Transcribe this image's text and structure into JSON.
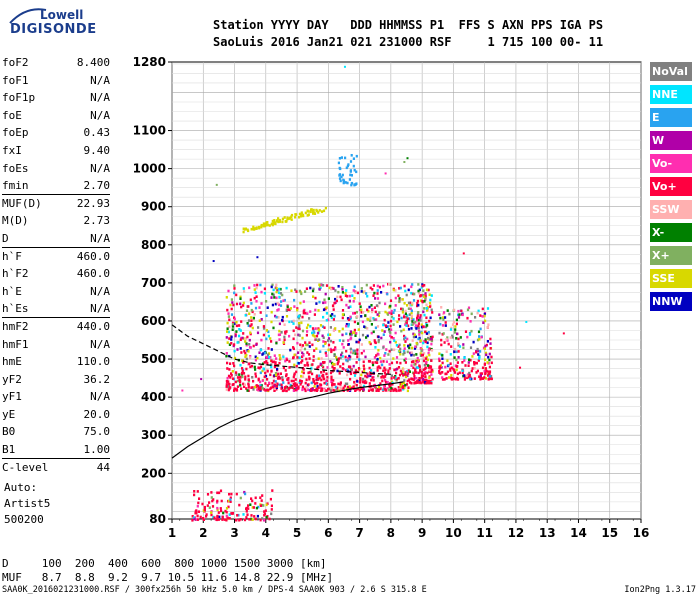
{
  "logo": {
    "top": "Lowell",
    "bottom": "DIGISONDE"
  },
  "header": {
    "line1": "Station YYYY DAY   DDD HHMMSS P1  FFS S AXN PPS IGA PS",
    "line2": "SaoLuis 2016 Jan21 021 231000 RSF     1 715 100 00- 11"
  },
  "params": [
    {
      "label": "foF2",
      "value": "8.400"
    },
    {
      "label": "foF1",
      "value": "N/A"
    },
    {
      "label": "foF1p",
      "value": "N/A"
    },
    {
      "label": "foE",
      "value": "N/A"
    },
    {
      "label": "foEp",
      "value": "0.43"
    },
    {
      "label": "fxI",
      "value": "9.40"
    },
    {
      "label": "foEs",
      "value": "N/A"
    },
    {
      "label": "fmin",
      "value": "2.70"
    },
    {
      "label": "MUF(D)",
      "value": "22.93"
    },
    {
      "label": "M(D)",
      "value": "2.73"
    },
    {
      "label": "D",
      "value": "N/A"
    },
    {
      "label": "h`F",
      "value": "460.0"
    },
    {
      "label": "h`F2",
      "value": "460.0"
    },
    {
      "label": "h`E",
      "value": "N/A"
    },
    {
      "label": "h`Es",
      "value": "N/A"
    },
    {
      "label": "hmF2",
      "value": "440.0"
    },
    {
      "label": "hmF1",
      "value": "N/A"
    },
    {
      "label": "hmE",
      "value": "110.0"
    },
    {
      "label": "yF2",
      "value": "36.2"
    },
    {
      "label": "yF1",
      "value": "N/A"
    },
    {
      "label": "yE",
      "value": "20.0"
    },
    {
      "label": "B0",
      "value": "75.0"
    },
    {
      "label": "B1",
      "value": "1.00"
    },
    {
      "label": "C-level",
      "value": "44"
    }
  ],
  "auto": {
    "line1": "Auto:",
    "line2": "Artist5",
    "line3": "500200"
  },
  "legend": [
    {
      "label": "NoVal",
      "color": "#808080"
    },
    {
      "label": "NNE",
      "color": "#00e5ff"
    },
    {
      "label": "E",
      "color": "#29a3f0"
    },
    {
      "label": "W",
      "color": "#b000a8"
    },
    {
      "label": "Vo-",
      "color": "#ff2eb0"
    },
    {
      "label": "Vo+",
      "color": "#ff0040"
    },
    {
      "label": "SSW",
      "color": "#ffb0b0"
    },
    {
      "label": "X-",
      "color": "#008000"
    },
    {
      "label": "X+",
      "color": "#80b060"
    },
    {
      "label": "SSE",
      "color": "#d8d800"
    },
    {
      "label": "NNW",
      "color": "#0000c0"
    }
  ],
  "chart_data": {
    "type": "scatter",
    "xlim": [
      1,
      16
    ],
    "ylim": [
      80,
      1280
    ],
    "x_ticks": [
      "1",
      "2",
      "3",
      "4",
      "5",
      "6",
      "7",
      "8",
      "9",
      "10",
      "11",
      "12",
      "13",
      "14",
      "15",
      "16"
    ],
    "y_ticks": [
      "80",
      "200",
      "300",
      "400",
      "500",
      "600",
      "700",
      "800",
      "900",
      "1000",
      "1100",
      "1280"
    ],
    "grid": true,
    "legend_position": "right",
    "traces": [
      {
        "color": "#000000",
        "points": [
          [
            1,
            240
          ],
          [
            1.5,
            270
          ],
          [
            2,
            295
          ],
          [
            2.5,
            320
          ],
          [
            3,
            340
          ],
          [
            3.5,
            355
          ],
          [
            4,
            370
          ],
          [
            4.5,
            380
          ],
          [
            5,
            392
          ],
          [
            5.5,
            400
          ],
          [
            6,
            410
          ],
          [
            6.5,
            418
          ],
          [
            7,
            425
          ],
          [
            7.5,
            430
          ],
          [
            8,
            435
          ],
          [
            8.4,
            440
          ]
        ]
      },
      {
        "color": "#000000",
        "points": [
          [
            1,
            590
          ],
          [
            1.5,
            560
          ],
          [
            2,
            540
          ],
          [
            2.5,
            520
          ],
          [
            3,
            500
          ],
          [
            3.5,
            490
          ],
          [
            4,
            485
          ],
          [
            5,
            478
          ],
          [
            6,
            470
          ],
          [
            7,
            465
          ],
          [
            7.5,
            462
          ],
          [
            8,
            460
          ]
        ]
      }
    ],
    "point_clusters": [
      {
        "x_range": [
          2.7,
          8.6
        ],
        "y_range": [
          420,
          700
        ],
        "count": 1400
      },
      {
        "x_range": [
          8.6,
          9.3
        ],
        "y_range": [
          440,
          700
        ],
        "count": 280
      },
      {
        "x_range": [
          9.5,
          11.2
        ],
        "y_range": [
          450,
          640
        ],
        "count": 260
      },
      {
        "x_range": [
          1.6,
          4.2
        ],
        "y_range": [
          80,
          160
        ],
        "count": 150
      },
      {
        "x_range": [
          6.3,
          6.9
        ],
        "y_range": [
          960,
          1040
        ],
        "count": 40,
        "color": "#29a3f0"
      },
      {
        "x_range": [
          3.2,
          5.9
        ],
        "y_range": [
          840,
          900
        ],
        "count": 90,
        "color": "#d8d800",
        "line": true
      }
    ],
    "bottom_table": {
      "D_label": "D",
      "D": [
        "100",
        "200",
        "400",
        "600",
        "800",
        "1000",
        "1500",
        "3000"
      ],
      "D_unit": "[km]",
      "MUF_label": "MUF",
      "MUF": [
        "8.7",
        "8.8",
        "9.2",
        "9.7",
        "10.5",
        "11.6",
        "14.8",
        "22.9"
      ],
      "MUF_unit": "[MHz]"
    }
  },
  "footer": {
    "left": "SAA0K_2016021231000.RSF / 300fx256h 50 kHz 5.0 km / DPS-4 SAA0K 903 / 2.6 S 315.8 E",
    "right": "Ion2Png 1.3.17"
  }
}
